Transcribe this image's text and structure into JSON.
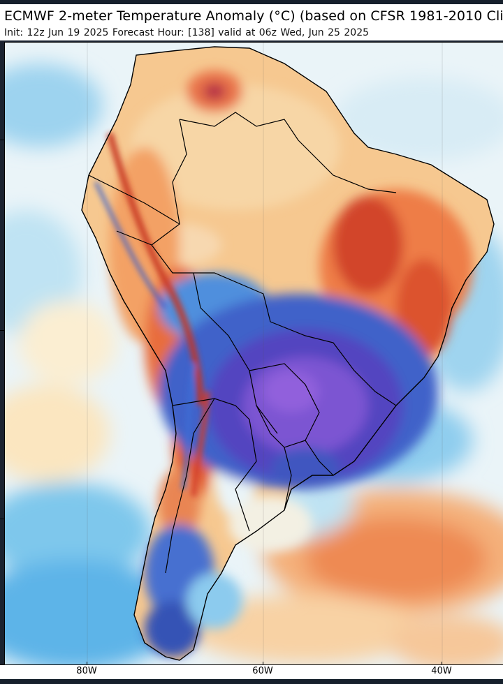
{
  "header": {
    "title": "ECMWF 2-meter Temperature Anomaly (°C) (based on CFSR 1981-2010 Clim",
    "subtitle": "Init: 12z Jun 19 2025   Forecast Hour: [138]   valid at 06z Wed, Jun 25 2025"
  },
  "axis": {
    "longitude_labels": [
      "80W",
      "60W",
      "40W"
    ]
  },
  "colors": {
    "very_warm": "#c9361f",
    "warm": "#f08a4b",
    "mild_warm": "#f6c07f",
    "near_normal": "#fbeed2",
    "slightly_cool": "#cfe8f4",
    "cool": "#6cc0ea",
    "cold": "#3f7ed6",
    "very_cold": "#3748b8",
    "extreme_cold": "#7a4fd0",
    "borders": "#000000"
  }
}
